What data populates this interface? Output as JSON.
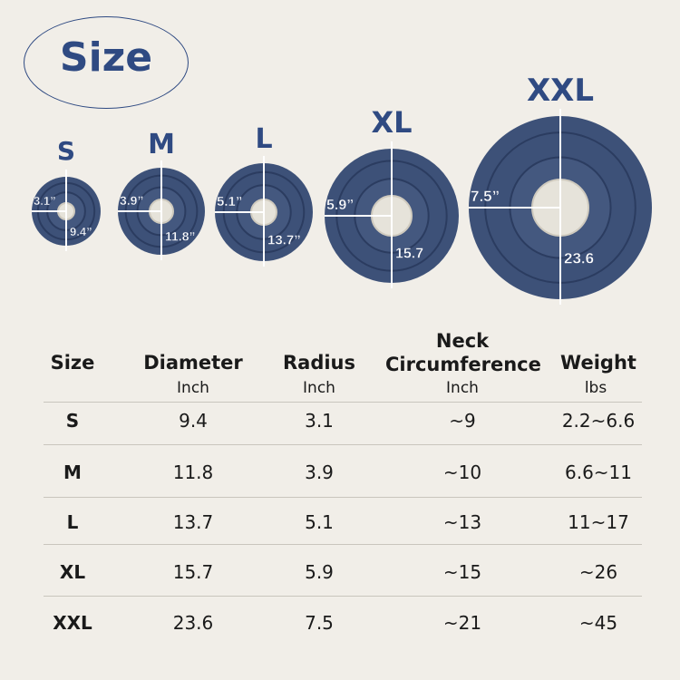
{
  "title": "Size",
  "colors": {
    "accent": "#2f4a82",
    "bed": "#3d5178",
    "center": "#e6e3da",
    "background": "#f1eee8"
  },
  "beds": [
    {
      "size": "S",
      "radius_label": "3.1”",
      "diameter_label": "9.4”"
    },
    {
      "size": "M",
      "radius_label": "3.9”",
      "diameter_label": "11.8”"
    },
    {
      "size": "L",
      "radius_label": "5.1”",
      "diameter_label": "13.7”"
    },
    {
      "size": "XL",
      "radius_label": "5.9”",
      "diameter_label": "15.7"
    },
    {
      "size": "XXL",
      "radius_label": "7.5”",
      "diameter_label": "23.6"
    }
  ],
  "table": {
    "headers": [
      {
        "label": "Size",
        "unit": ""
      },
      {
        "label": "Diameter",
        "unit": "Inch"
      },
      {
        "label": "Radius",
        "unit": "Inch"
      },
      {
        "label": "Neck Circumference",
        "unit": "Inch"
      },
      {
        "label": "Weight",
        "unit": "lbs"
      }
    ],
    "rows": [
      [
        "S",
        "9.4",
        "3.1",
        "~9",
        "2.2~6.6"
      ],
      [
        "M",
        "11.8",
        "3.9",
        "~10",
        "6.6~11"
      ],
      [
        "L",
        "13.7",
        "5.1",
        "~13",
        "11~17"
      ],
      [
        "XL",
        "15.7",
        "5.9",
        "~15",
        "~26"
      ],
      [
        "XXL",
        "23.6",
        "7.5",
        "~21",
        "~45"
      ]
    ]
  }
}
